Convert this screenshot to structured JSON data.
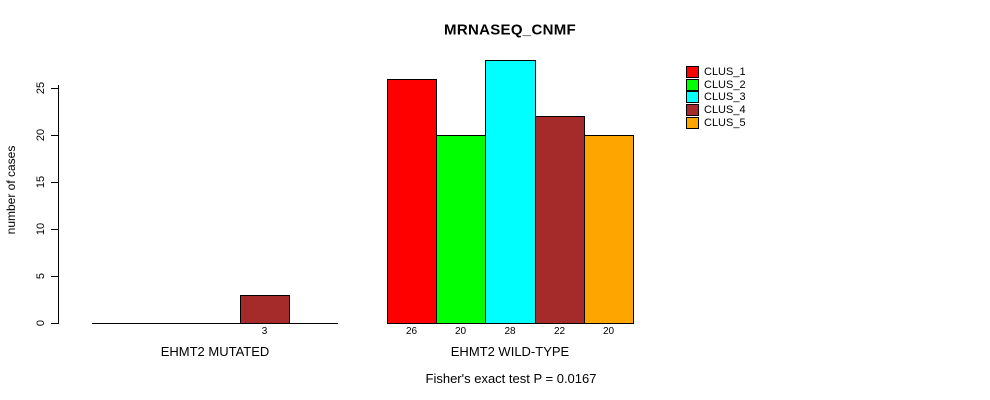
{
  "chart_data": {
    "type": "bar",
    "title": "MRNASEQ_CNMF",
    "ylabel": "number of cases",
    "yticks": [
      0,
      5,
      10,
      15,
      20,
      25
    ],
    "ylim": [
      0,
      28
    ],
    "grid": false,
    "legend_position": "top-right",
    "series_names": [
      "CLUS_1",
      "CLUS_2",
      "CLUS_3",
      "CLUS_4",
      "CLUS_5"
    ],
    "series_colors": [
      "#FF0000",
      "#00FF00",
      "#00FFFF",
      "#A52A2A",
      "#FFA500"
    ],
    "categories": [
      "EHMT2 MUTATED",
      "EHMT2 WILD-TYPE"
    ],
    "groups": [
      {
        "label": "EHMT2 MUTATED",
        "values": [
          0,
          0,
          0,
          3,
          0
        ],
        "bar_labels": [
          "",
          "",
          "",
          "3",
          ""
        ]
      },
      {
        "label": "EHMT2 WILD-TYPE",
        "values": [
          26,
          20,
          28,
          22,
          20
        ],
        "bar_labels": [
          "26",
          "20",
          "28",
          "22",
          "20"
        ]
      }
    ],
    "annotation": "Fisher's exact test P = 0.0167"
  }
}
